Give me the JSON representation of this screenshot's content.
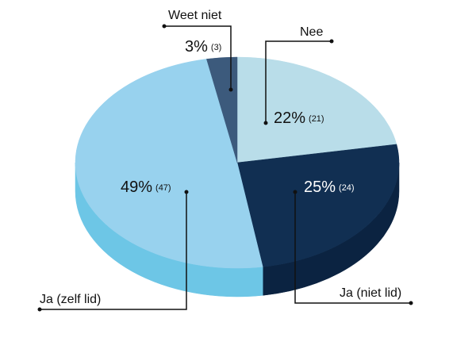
{
  "chart_data": {
    "type": "pie3d",
    "categories": [
      "Nee",
      "Ja (niet lid)",
      "Ja (zelf lid)",
      "Weet niet"
    ],
    "values": [
      22,
      25,
      49,
      3
    ],
    "value_labels": [
      "22%",
      "25%",
      "49%",
      "3%"
    ],
    "count_labels": [
      "(21)",
      "(24)",
      "(47)",
      "(3)"
    ],
    "colors": [
      "#b9dde9",
      "#112f52",
      "#98d2ee",
      "#3c5a7c"
    ],
    "side_colors": [
      "#8fc3d6",
      "#0b2341",
      "#6dc6e6",
      "#2b4664"
    ]
  }
}
